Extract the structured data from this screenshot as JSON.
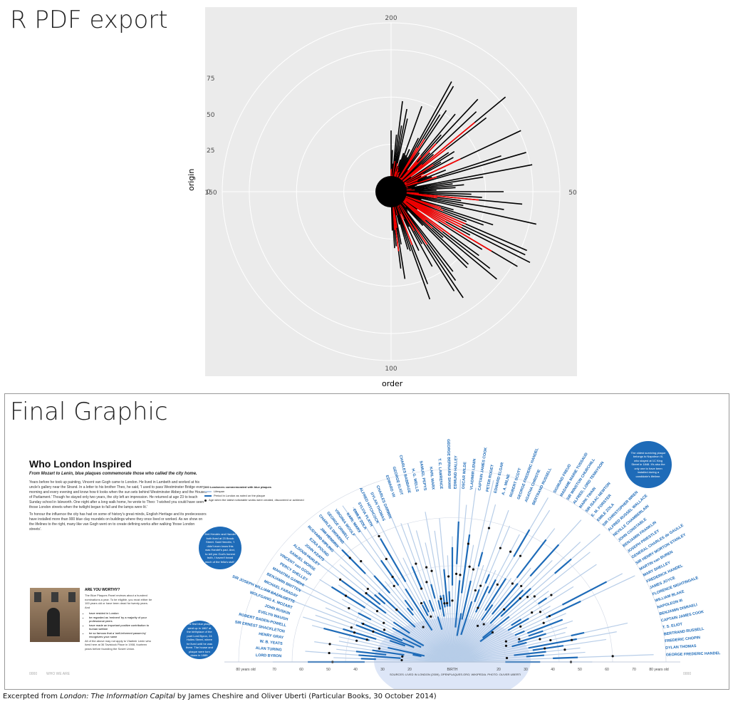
{
  "r_panel": {
    "title": "R PDF export",
    "xlabel": "order",
    "ylabel": "origin",
    "angle_ticks": [
      "200",
      "50",
      "100",
      "150"
    ],
    "radial_ticks": [
      "0",
      "25",
      "50",
      "75"
    ],
    "colors": {
      "background": "#ebebeb",
      "grid": "#ffffff",
      "lifespan": "#000000",
      "london": "#ff0000",
      "highlight": "#ffff00"
    }
  },
  "final_graphic": {
    "title": "Final Graphic",
    "headline": "Who London Inspired",
    "dek": "From Mozart to Lenin, blue plaques commemorate those who called the city home.",
    "paragraphs": [
      "Years before he took up painting, Vincent van Gogh came to London. He lived in Lambeth and worked at his uncle's gallery near the Strand. In a letter to his brother Theo, he said, 'I used to pass Westminster Bridge every morning and every evening and know how it looks when the sun sets behind Westminster Abbey and the Houses of Parliament.' Though he stayed only two years, the city left an impression. He returned at age 23 to teach Sunday school in Isleworth. One night after a long walk home, he wrote to Theo: 'I wished you could have seen those London streets when the twilight began to fall and the lamps were lit.'",
      "To honour the influence the city has had on some of history's great minds, English Heritage and its predecessors have installed more than 900 blue clay roundels on buildings where they once lived or worked. As we show on the lifelines to the right, many like van Gogh went on to create defining works after walking 'those London streets'."
    ],
    "worthy": {
      "heading": "ARE YOU WORTHY?",
      "intro": "The Blue Plaques Panel reviews about a hundred nominations a year. To be eligible, you must either be 100 years old or have been dead for twenty years. And",
      "bullets": [
        "have resided in London",
        "be regarded as 'eminent' by a majority of your professional peers",
        "have made an important positive contribution to human welfare",
        "be so famous that a 'well-informed passer-by' recognizes your name"
      ],
      "outro": "All of the above may not apply to Vladimir Lenin who lived here at 36 Tavistock Place in 1908, fourteen years before founding the Soviet Union."
    },
    "legend": {
      "title": "100 Londoners commemorated with blue plaques",
      "items": [
        "Lifespan",
        "Period in London as noted on the plaque",
        "Age when the latest noticeable works were created, discovered or achieved"
      ]
    },
    "bubbles": {
      "hendrix": "Jimi Hendrix and Handel both lived at 23 Brook Street. Said Hendrix, 'I didn't even know this was Handel's pad. And, to tell you God's honest truth, I haven't heard much of the fella's stuff.'",
      "byron": "The first blue plaque went up in 1867 at the birthplace of the poet Lord Byron, 24 Holles Street, where he lived until he was three. The house and plaque were torn down in 1889.",
      "napoleon": "The oldest surviving plaque belongs to Napoleon III, who stayed at 1C King Street in 1848. It's also the only one to have been installed during a candidate's lifetime."
    },
    "axis": {
      "left_label": "80 years old",
      "center_label": "BIRTH",
      "right_label": "80 years old",
      "ticks_left": [
        "70",
        "60",
        "50",
        "40",
        "30",
        "20"
      ],
      "ticks_right": [
        "20",
        "30",
        "40",
        "50",
        "60",
        "70"
      ]
    },
    "names_left": [
      "LORD BYRON",
      "ALAN TURING",
      "W. B. YEATS",
      "HENRY GRAY",
      "SIR ERNEST SHACKLETON",
      "ROBERT BADEN-POWELL",
      "EVELYN WAUGH",
      "JOHN RUSKIN",
      "WOLFGANG A. MOZART",
      "SIR JOSEPH WILLIAM BAZALGETTE",
      "MICHAEL FARADAY",
      "BENJAMIN BRITTEN",
      "MAHATMA GANDHI",
      "PERCY SHELLEY",
      "VINCENT van GOGH",
      "SAMUEL MORSE",
      "ALDOUS HUXLEY",
      "JOHN KEATS",
      "EZRA POUND",
      "RUDYARD KIPLING",
      "JIMI HENDRIX",
      "CHARLES DICKENS",
      "GEORGE ORWELL",
      "VIRGINIA WOOLF",
      "KARL MARX",
      "EMILE ZOLA",
      "SYLVIA PLATH",
      "ALFRED HITCHCOCK",
      "DYLAN THOMAS",
      "CHARLES DARWIN"
    ],
    "names_right": [
      "SIGMUND FREUD",
      "MADAME MARIE TUSSAUD",
      "SIR WINSTON CHURCHILL",
      "ALFRED, LORD TENNYSON",
      "MARK TWAIN",
      "SIR ISAAC NEWTON",
      "E. M. FORSTER",
      "EMILE ZOLA",
      "SIR CHRISTOPHER WREN",
      "ALFRED RUSSEL WALLACE",
      "NEVILLE CHAMBERLAIN",
      "JOHN CONSTABLE",
      "BENJAMIN FRANKLIN",
      "JOSEPH PRIESTLEY",
      "GENERAL CHARLES de GAULLE",
      "SIR HENRY MORTON STANLEY",
      "MARTIN van BUREN",
      "MARY SHELLEY",
      "FREDERICK HANDEL",
      "JAMES JOYCE",
      "FLORENCE NIGHTINGALE",
      "WILLIAM BLAKE",
      "NAPOLEON III",
      "BENJAMIN DISRAELI",
      "CAPTAIN JAMES COOK",
      "T. S. ELIOT",
      "BERTRAND RUSSELL",
      "FREDERIC CHOPIN",
      "DYLAN THOMAS",
      "GEORGE FREDERIC HANDEL"
    ],
    "names_top": [
      "EDWARD VII",
      "GEORGE ELIOT",
      "CHARLES BABBAGE",
      "H. G. WELLS",
      "SAMUEL PEPYS",
      "KARL MARX",
      "T. E. LAWRENCE",
      "GEORGE BERNARD SHAW",
      "EDMUND HALLEY",
      "OSCAR WILDE",
      "VLADIMIR LENIN",
      "CAPTAIN JAMES COOK",
      "PETER ROGET",
      "EDWARD ELGAR",
      "A. A. MILNE",
      "ROBERT SCOTT",
      "GEORGE FREDERIC HANDEL",
      "AGATHA CHRISTIE",
      "BERTRAND RUSSELL"
    ],
    "sources": "SOURCES: LIVED IN LONDON (2009), OPENPLAQUES.ORG; WIKIPEDIA. PHOTO: OLIVER UBERTI",
    "page_tag_left": "0000",
    "page_tag_mid": "WHO WE ARE",
    "page_tag_right": "0000",
    "colors": {
      "blue": "#1e6bb8",
      "light_blue": "#b7cde8",
      "dot": "#111111"
    }
  },
  "excerpt": {
    "prefix": "Excerpted from ",
    "book": "London: The Information Capital",
    "suffix": " by James Cheshire and Oliver Uberti (Particular Books, 30 October 2014)"
  }
}
